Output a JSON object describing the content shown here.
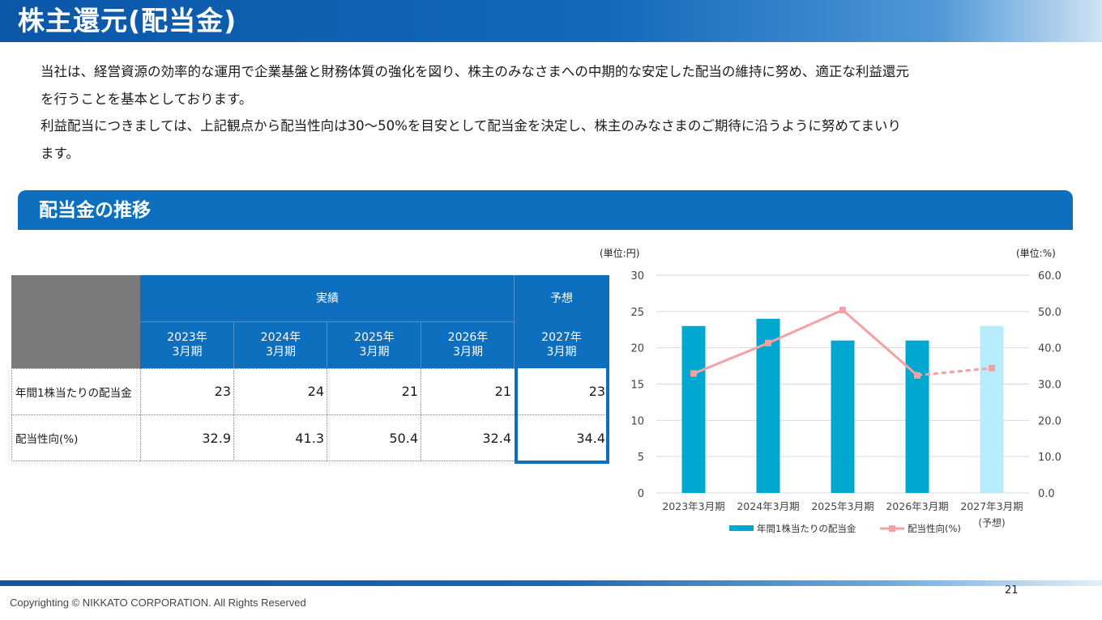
{
  "header": {
    "title": "株主還元(配当金)"
  },
  "intro": {
    "line1": "当社は、経営資源の効率的な運用で企業基盤と財務体質の強化を図り、株主のみなさまへの中期的な安定した配当の維持に努め、適正な利益還元",
    "line2": "を行うことを基本としております。",
    "line3": "利益配当につきましては、上記観点から配当性向は30〜50%を目安として配当金を決定し、株主のみなさまのご期待に沿うように努めてまいり",
    "line4": "ます。"
  },
  "section": {
    "title": "配当金の推移"
  },
  "table": {
    "group_actual": "実績",
    "group_forecast": "予想",
    "periods": [
      {
        "year": "2023年",
        "month": "3月期"
      },
      {
        "year": "2024年",
        "month": "3月期"
      },
      {
        "year": "2025年",
        "month": "3月期"
      },
      {
        "year": "2026年",
        "month": "3月期"
      },
      {
        "year": "2027年",
        "month": "3月期"
      }
    ],
    "rows": [
      {
        "label": "年間1株当たりの配当金",
        "values": [
          "23",
          "24",
          "21",
          "21",
          "23"
        ]
      },
      {
        "label": "配当性向(%)",
        "values": [
          "32.9",
          "41.3",
          "50.4",
          "32.4",
          "34.4"
        ]
      }
    ]
  },
  "chart_data": {
    "type": "bar",
    "categories": [
      "2023年3月期",
      "2024年3月期",
      "2025年3月期",
      "2026年3月期",
      "2027年3月期"
    ],
    "category_note": "(予想)",
    "series": [
      {
        "name": "年間1株当たりの配当金",
        "kind": "bar",
        "axis": "left",
        "values": [
          23,
          24,
          21,
          21,
          23
        ],
        "forecast_index": 4
      },
      {
        "name": "配当性向(%)",
        "kind": "line",
        "axis": "right",
        "values": [
          32.9,
          41.3,
          50.4,
          32.4,
          34.4
        ],
        "forecast_index": 4
      }
    ],
    "left_axis": {
      "unit_label": "(単位:円)",
      "ylim": [
        0,
        30
      ],
      "ticks": [
        "0",
        "5",
        "10",
        "15",
        "20",
        "25",
        "30"
      ]
    },
    "right_axis": {
      "unit_label": "(単位:%)",
      "ylim": [
        0,
        60
      ],
      "ticks": [
        "0.0",
        "10.0",
        "20.0",
        "30.0",
        "40.0",
        "50.0",
        "60.0"
      ]
    },
    "grid": true,
    "legend_position": "bottom",
    "colors": {
      "bar": "#00a7cf",
      "bar_forecast": "#b8ecfa",
      "line": "#f4a1a4",
      "grid": "#d9d9d9"
    }
  },
  "footer": {
    "page_number": "21",
    "copyright": "Copyrighting © NIKKATO CORPORATION. All Rights Reserved"
  }
}
